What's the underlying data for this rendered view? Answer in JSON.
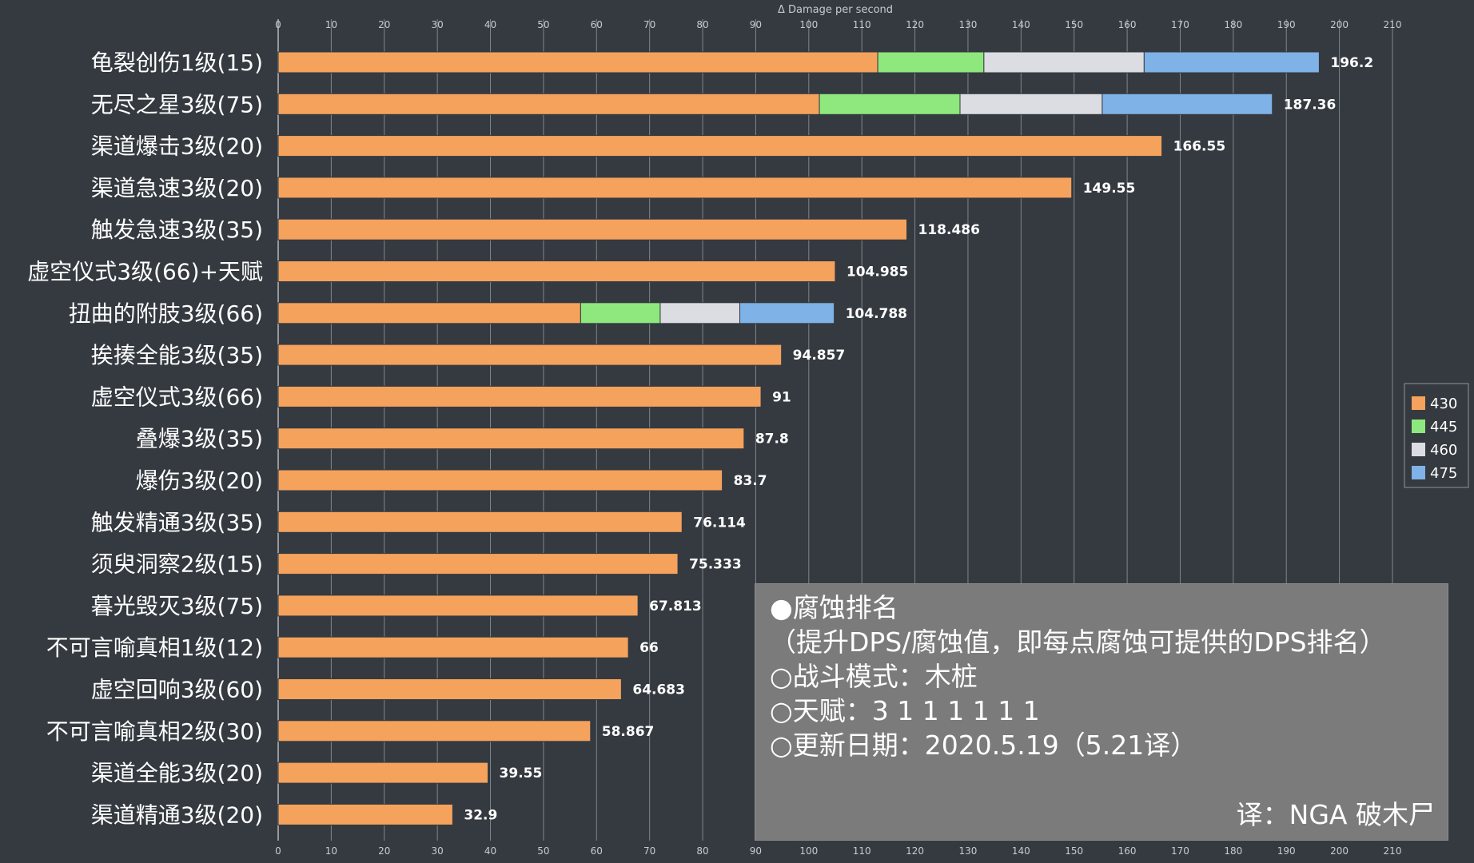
{
  "chart_data": {
    "type": "bar",
    "orientation": "horizontal",
    "stacked": true,
    "xlabel": "Δ Damage per second",
    "xlim": [
      0,
      210
    ],
    "xticks": [
      0,
      10,
      20,
      30,
      40,
      50,
      60,
      70,
      80,
      90,
      100,
      110,
      120,
      130,
      140,
      150,
      160,
      170,
      180,
      190,
      200,
      210
    ],
    "grid": true,
    "legend": "right",
    "categories": [
      "龟裂创伤1级(15)",
      "无尽之星3级(75)",
      "渠道爆击3级(20)",
      "渠道急速3级(20)",
      "触发急速3级(35)",
      "虚空仪式3级(66)+天赋",
      "扭曲的附肢3级(66)",
      "挨揍全能3级(35)",
      "虚空仪式3级(66)",
      "叠爆3级(35)",
      "爆伤3级(20)",
      "触发精通3级(35)",
      "须臾洞察2级(15)",
      "暮光毁灭3级(75)",
      "不可言喻真相1级(12)",
      "虚空回响3级(60)",
      "不可言喻真相2级(30)",
      "渠道全能3级(20)",
      "渠道精通3级(20)"
    ],
    "totals": [
      "196.2",
      "187.36",
      "166.55",
      "149.55",
      "118.486",
      "104.985",
      "104.788",
      "94.857",
      "91",
      "87.8",
      "83.7",
      "76.114",
      "75.333",
      "67.813",
      "66",
      "64.683",
      "58.867",
      "39.55",
      "32.9"
    ],
    "series": [
      {
        "name": "430",
        "color": "#f5a25d",
        "values": [
          113,
          102,
          166.55,
          149.55,
          118.486,
          104.985,
          57,
          94.857,
          91,
          87.8,
          83.7,
          76.114,
          75.333,
          67.813,
          66,
          64.683,
          58.867,
          39.55,
          32.9
        ]
      },
      {
        "name": "445",
        "color": "#8ee87d",
        "values": [
          20,
          26.5,
          0,
          0,
          0,
          0,
          15,
          0,
          0,
          0,
          0,
          0,
          0,
          0,
          0,
          0,
          0,
          0,
          0
        ]
      },
      {
        "name": "460",
        "color": "#dcdde2",
        "values": [
          30.2,
          26.8,
          0,
          0,
          0,
          0,
          15,
          0,
          0,
          0,
          0,
          0,
          0,
          0,
          0,
          0,
          0,
          0,
          0
        ]
      },
      {
        "name": "475",
        "color": "#7fb2e6",
        "values": [
          33,
          32.06,
          0,
          0,
          0,
          0,
          17.788,
          0,
          0,
          0,
          0,
          0,
          0,
          0,
          0,
          0,
          0,
          0,
          0
        ]
      }
    ]
  },
  "info": {
    "line1": "●腐蚀排名",
    "line2": "（提升DPS/腐蚀值，即每点腐蚀可提供的DPS排名）",
    "line3": "○战斗模式：木桩",
    "line4": "○天赋：3 1 1 1 1 1 1",
    "line5": "○更新日期：2020.5.19（5.21译）",
    "credit": "译：NGA 破木尸"
  },
  "colors": {
    "background": "#343a40",
    "grid": "#9a9ea2",
    "info_box": "#7b7b7b"
  }
}
